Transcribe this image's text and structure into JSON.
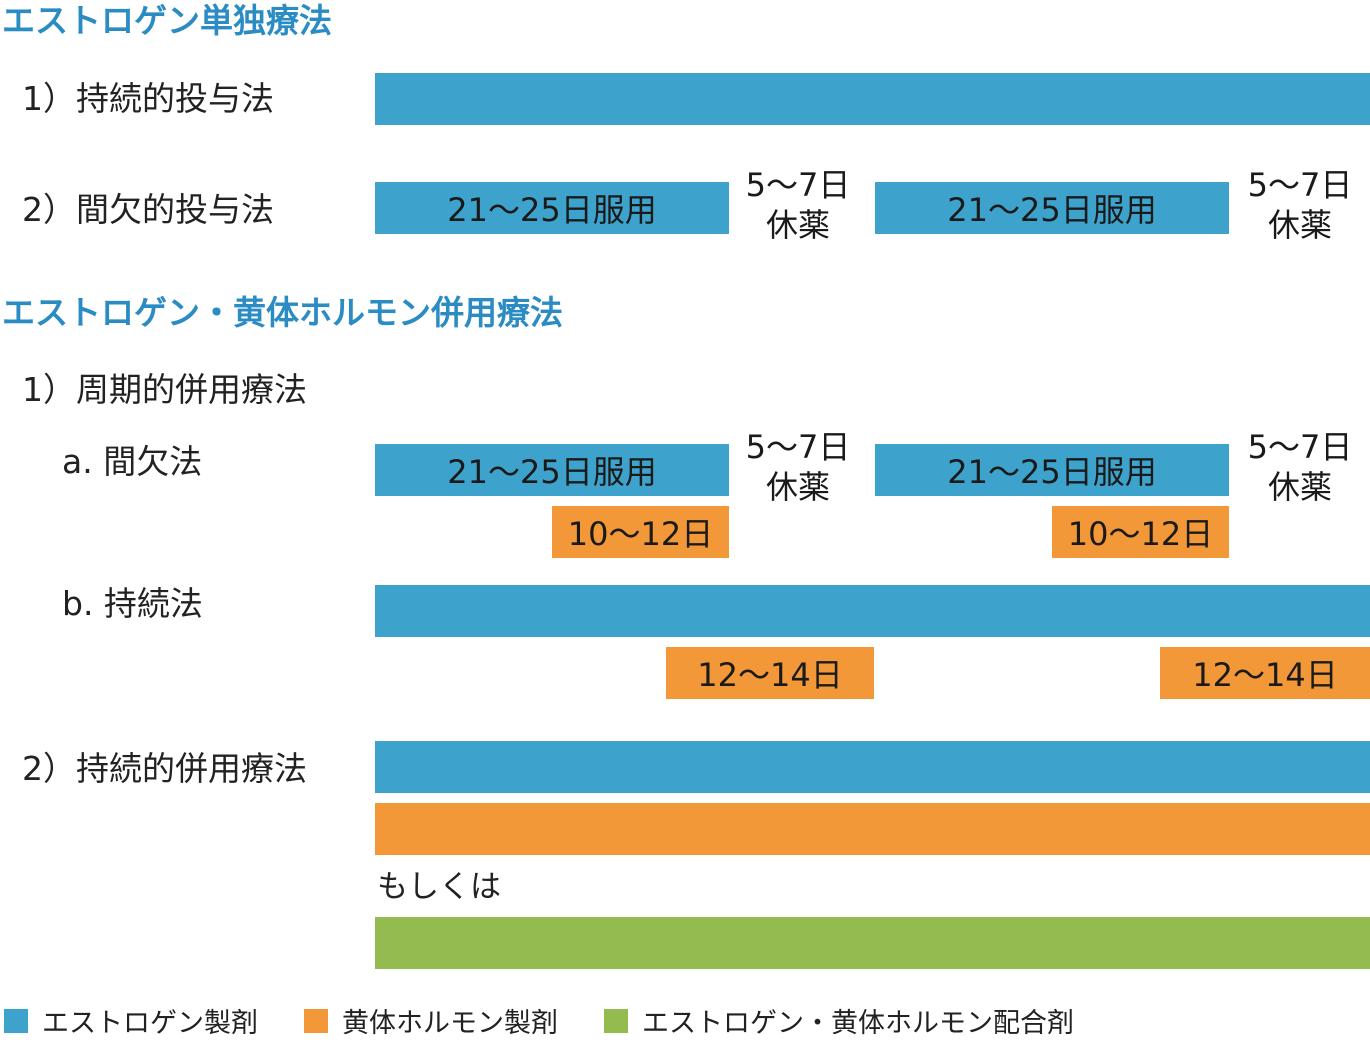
{
  "section1": {
    "title": "エストロゲン単独療法",
    "row1_label": "1）持続的投与法",
    "row2_label": "2）間欠的投与法",
    "intake_label": "21〜25日服用",
    "rest_line1": "5〜7日",
    "rest_line2": "休薬"
  },
  "section2": {
    "title": "エストロゲン・黄体ホルモン併用療法",
    "cyclic_label": "1）周期的併用療法",
    "sub_a_label": "a. 間欠法",
    "sub_b_label": "b. 持続法",
    "continuous_label": "2）持続的併用療法",
    "intake_label": "21〜25日服用",
    "rest_line1": "5〜7日",
    "rest_line2": "休薬",
    "progestin_a": "10〜12日",
    "progestin_b": "12〜14日",
    "or_text": "もしくは"
  },
  "legend": [
    {
      "label": "エストロゲン製剤",
      "color": "#3ea3cc"
    },
    {
      "label": "黄体ホルモン製剤",
      "color": "#f29838"
    },
    {
      "label": "エストロゲン・黄体ホルモン配合剤",
      "color": "#93bb50"
    }
  ]
}
